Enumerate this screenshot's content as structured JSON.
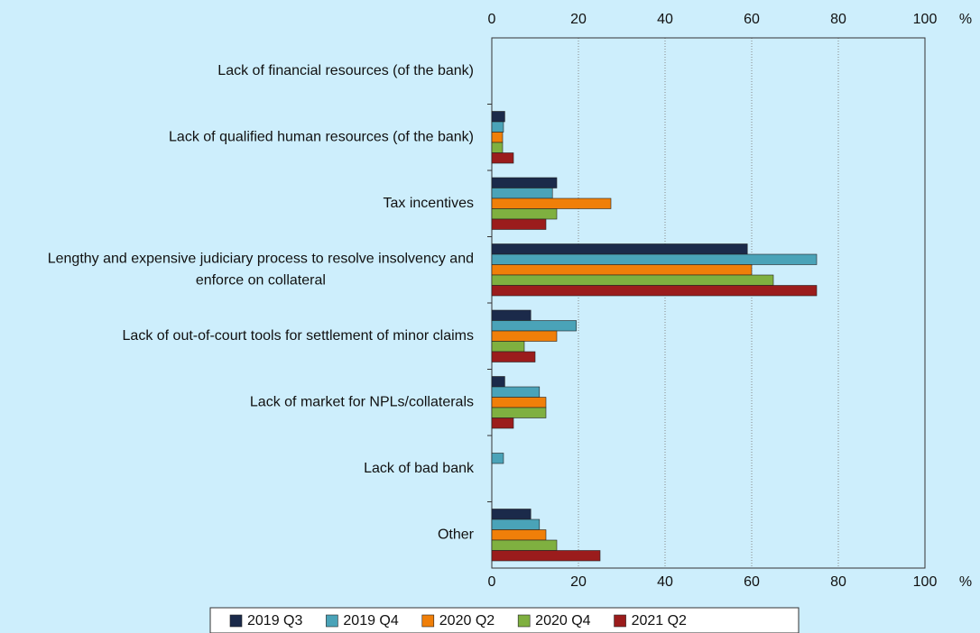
{
  "chart_data": {
    "type": "hbar",
    "categories": [
      "Lack of financial resources (of the bank)",
      "Lack of qualified human resources (of the bank)",
      "Tax incentives",
      "Lengthy and expensive judiciary process to resolve insolvency and enforce on collateral",
      "Lack of out-of-court tools for settlement of minor claims",
      "Lack of market for NPLs/collaterals",
      "Lack of bad bank",
      "Other"
    ],
    "series": [
      {
        "name": "2019 Q3",
        "color": "#1b2a4a",
        "values": [
          0,
          3,
          15,
          59,
          9,
          3,
          0,
          9
        ]
      },
      {
        "name": "2019 Q4",
        "color": "#4aa3b8",
        "values": [
          0,
          2.7,
          14,
          75,
          19.5,
          11,
          2.7,
          11
        ]
      },
      {
        "name": "2020 Q2",
        "color": "#f07f09",
        "values": [
          0,
          2.5,
          27.5,
          60,
          15,
          12.5,
          0,
          12.5
        ]
      },
      {
        "name": "2020 Q4",
        "color": "#7fb040",
        "values": [
          0,
          2.5,
          15,
          65,
          7.5,
          12.5,
          0,
          15
        ]
      },
      {
        "name": "2021 Q2",
        "color": "#9b1c1c",
        "values": [
          0,
          5,
          12.5,
          75,
          10,
          5,
          0,
          25
        ]
      }
    ],
    "xlim": [
      0,
      100
    ],
    "xticks": [
      0,
      20,
      40,
      60,
      80,
      100
    ],
    "unit": "%",
    "grid": true
  }
}
